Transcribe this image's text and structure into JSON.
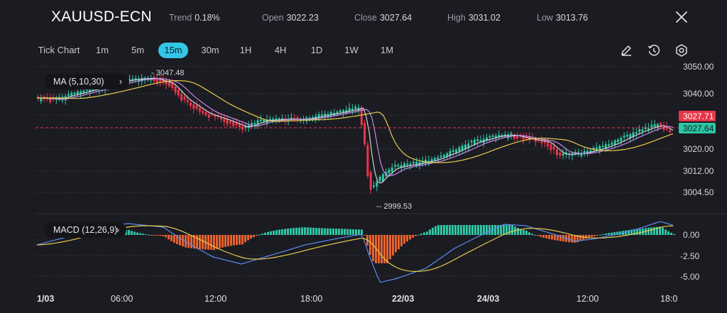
{
  "header": {
    "symbol": "XAUUSD-ECN",
    "trend_label": "Trend",
    "trend_value": "0.18%",
    "open_label": "Open",
    "open_value": "3022.23",
    "close_label": "Close",
    "close_value": "3027.64",
    "high_label": "High",
    "high_value": "3031.02",
    "low_label": "Low",
    "low_value": "3013.76",
    "close_icon": "close-icon"
  },
  "timeframes": {
    "items": [
      "Tick Chart",
      "1m",
      "5m",
      "15m",
      "30m",
      "1H",
      "4H",
      "1D",
      "1W",
      "1M"
    ],
    "selected": "15m"
  },
  "tools": [
    "pencil-icon",
    "clock-icon",
    "settings-icon"
  ],
  "indicators": {
    "ma_label": "MA (5,10,30)",
    "macd_label": "MACD (12,26,9)"
  },
  "price_axis": {
    "ticks": [
      "3050.00",
      "3040.00",
      "3020.00",
      "3012.00",
      "3004.50"
    ],
    "high_marker": "3047.48",
    "low_marker": "2999.53",
    "current_badge": "3027.71",
    "close_badge": "3027.64"
  },
  "macd_axis": {
    "ticks": [
      "0.00",
      "-2.50",
      "-5.00"
    ]
  },
  "time_axis": {
    "ticks": [
      "1/03",
      "06:00",
      "12:00",
      "18:00",
      "22/03",
      "24/03",
      "12:00",
      "18:0"
    ]
  },
  "colors": {
    "background": "#1b1b22",
    "up": "#2ec6a4",
    "down": "#e8364a",
    "ma5": "#cfcfd8",
    "ma10": "#c18be8",
    "ma30": "#e8cc4a",
    "macd_line": "#5a8cf0",
    "signal_line": "#e8cc4a",
    "hist_down": "#e8622e",
    "accent": "#34c6e8"
  }
}
